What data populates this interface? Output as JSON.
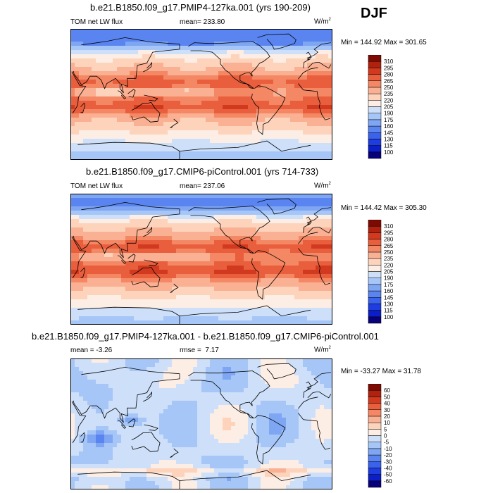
{
  "season": "DJF",
  "colors": {
    "pos_scale": [
      "#08017a",
      "#0b1ec8",
      "#1e3ce0",
      "#3a62ec",
      "#5a85f0",
      "#7ea6f3",
      "#a6c6f7",
      "#cddff9",
      "#fdeee5",
      "#fdd3bc",
      "#fab092",
      "#f48865",
      "#e95e3c",
      "#d23a1f",
      "#b0220e",
      "#7e0b03"
    ],
    "diff_scale": [
      "#08017a",
      "#0b1ec8",
      "#1e3ce0",
      "#3a62ec",
      "#5a85f0",
      "#7ea6f3",
      "#a6c6f7",
      "#cddff9",
      "#fdeee5",
      "#fdd3bc",
      "#fab092",
      "#f48865",
      "#e95e3c",
      "#d23a1f",
      "#b0220e",
      "#7e0b03"
    ],
    "land": "#000000"
  },
  "chart_data": [
    {
      "type": "heatmap",
      "title": "b.e21.B1850.f09_g17.PMIP4-127ka.001 (yrs 190-209)",
      "variable": "TOM net LW flux",
      "stat_label": "mean=",
      "stat_value": "233.80",
      "units": "W/m",
      "units_exp": "2",
      "minmax": "Min = 144.92 Max = 301.65",
      "levels": [
        "100",
        "115",
        "130",
        "145",
        "160",
        "175",
        "190",
        "205",
        "220",
        "235",
        "250",
        "265",
        "280",
        "295",
        "310"
      ]
    },
    {
      "type": "heatmap",
      "title": "b.e21.B1850.f09_g17.CMIP6-piControl.001 (yrs 714-733)",
      "variable": "TOM net LW flux",
      "stat_label": "mean=",
      "stat_value": "237.06",
      "units": "W/m",
      "units_exp": "2",
      "minmax": "Min = 144.42 Max = 305.30",
      "levels": [
        "100",
        "115",
        "130",
        "145",
        "160",
        "175",
        "190",
        "205",
        "220",
        "235",
        "250",
        "265",
        "280",
        "295",
        "310"
      ]
    },
    {
      "type": "heatmap",
      "title": "b.e21.B1850.f09_g17.PMIP4-127ka.001 - b.e21.B1850.f09_g17.CMIP6-piControl.001",
      "variable": "mean =  -3.26",
      "stat_label": "rmse =",
      "stat_value": "7.17",
      "units": "W/m",
      "units_exp": "2",
      "minmax": "Min = -33.27 Max =  31.78",
      "levels": [
        "-60",
        "-50",
        "-40",
        "-30",
        "-20",
        "-10",
        "-5",
        "0",
        "5",
        "10",
        "20",
        "30",
        "40",
        "50",
        "60"
      ]
    }
  ]
}
